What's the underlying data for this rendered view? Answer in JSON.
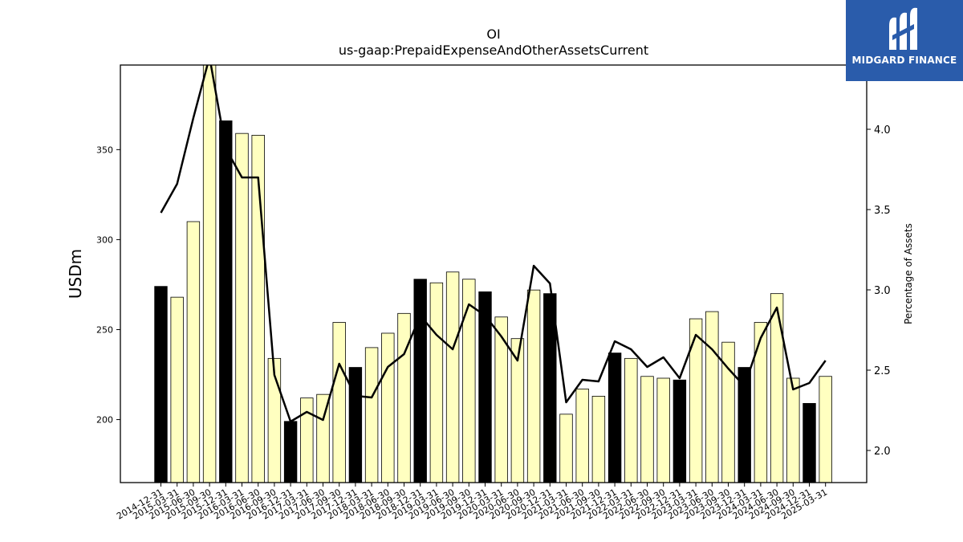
{
  "chart_data": {
    "type": "bar",
    "title": "OI",
    "subtitle": "us-gaap:PrepaidExpenseAndOtherAssetsCurrent",
    "ylabel": "USDm",
    "y2label": "Percentage of Assets",
    "ylim": [
      165,
      397
    ],
    "y2lim": [
      1.8,
      4.4
    ],
    "yticks": [
      200,
      250,
      300,
      350
    ],
    "y2ticks": [
      2.0,
      2.5,
      3.0,
      3.5,
      4.0
    ],
    "categories": [
      "2014-12-31",
      "2015-03-31",
      "2015-06-30",
      "2015-09-30",
      "2015-12-31",
      "2016-03-31",
      "2016-06-30",
      "2016-09-30",
      "2016-12-31",
      "2017-03-31",
      "2017-06-30",
      "2017-09-30",
      "2017-12-31",
      "2018-03-31",
      "2018-06-30",
      "2018-09-30",
      "2018-12-31",
      "2019-03-31",
      "2019-06-30",
      "2019-09-30",
      "2019-12-31",
      "2020-03-31",
      "2020-06-30",
      "2020-09-30",
      "2020-12-31",
      "2021-03-31",
      "2021-06-30",
      "2021-09-30",
      "2021-12-31",
      "2022-03-31",
      "2022-06-30",
      "2022-09-30",
      "2022-12-31",
      "2023-03-31",
      "2023-06-30",
      "2023-09-30",
      "2023-12-31",
      "2024-03-31",
      "2024-06-30",
      "2024-09-30",
      "2024-12-31",
      "2025-03-31"
    ],
    "series": [
      {
        "type": "bar",
        "values": [
          274,
          268,
          310,
          401,
          366,
          359,
          358,
          234,
          199,
          212,
          214,
          254,
          229,
          240,
          248,
          259,
          278,
          276,
          282,
          278,
          271,
          257,
          245,
          272,
          270,
          203,
          217,
          213,
          237,
          234,
          224,
          223,
          222,
          256,
          260,
          243,
          229,
          254,
          270,
          223,
          209,
          224
        ],
        "highlight": [
          true,
          false,
          false,
          false,
          true,
          false,
          false,
          false,
          true,
          false,
          false,
          false,
          true,
          false,
          false,
          false,
          true,
          false,
          false,
          false,
          true,
          false,
          false,
          false,
          true,
          false,
          false,
          false,
          true,
          false,
          false,
          false,
          true,
          false,
          false,
          false,
          true,
          false,
          false,
          false,
          true,
          false
        ],
        "color": "#ffffc0",
        "highlight_color": "#000000"
      },
      {
        "type": "line",
        "axis": "right",
        "values": [
          3.48,
          3.66,
          4.07,
          4.45,
          3.88,
          3.7,
          3.7,
          2.47,
          2.18,
          2.24,
          2.19,
          2.54,
          2.34,
          2.33,
          2.52,
          2.6,
          2.84,
          2.72,
          2.63,
          2.91,
          2.84,
          2.71,
          2.56,
          3.15,
          3.04,
          2.3,
          2.44,
          2.43,
          2.68,
          2.63,
          2.52,
          2.58,
          2.45,
          2.72,
          2.63,
          2.51,
          2.4,
          2.7,
          2.89,
          2.38,
          2.42,
          2.56
        ],
        "color": "#000000"
      }
    ],
    "grid": false,
    "legend": "none"
  },
  "logo": {
    "text": "MIDGARD FINANCE",
    "color": "#2a5cab"
  }
}
